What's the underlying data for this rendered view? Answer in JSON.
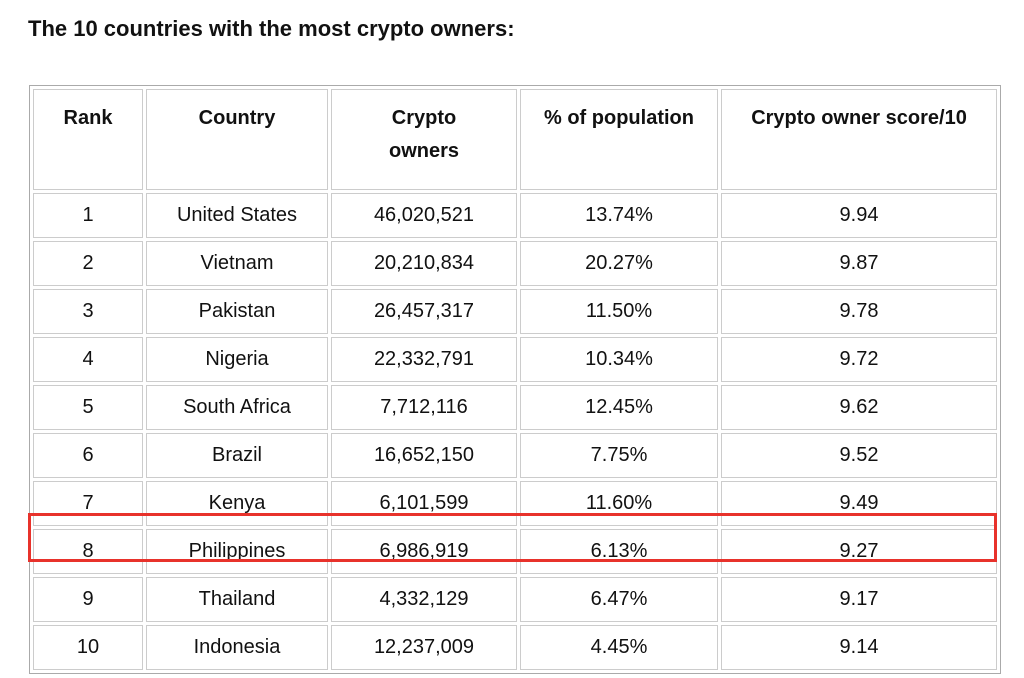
{
  "title": "The 10 countries with the most crypto owners:",
  "table": {
    "headers": [
      "Rank",
      "Country",
      "Crypto owners",
      "% of population",
      "Crypto owner score/10"
    ],
    "rows": [
      [
        "1",
        "United States",
        "46,020,521",
        "13.74%",
        "9.94"
      ],
      [
        "2",
        "Vietnam",
        "20,210,834",
        "20.27%",
        "9.87"
      ],
      [
        "3",
        "Pakistan",
        "26,457,317",
        "11.50%",
        "9.78"
      ],
      [
        "4",
        "Nigeria",
        "22,332,791",
        "10.34%",
        "9.72"
      ],
      [
        "5",
        "South Africa",
        "7,712,116",
        "12.45%",
        "9.62"
      ],
      [
        "6",
        "Brazil",
        "16,652,150",
        "7.75%",
        "9.52"
      ],
      [
        "7",
        "Kenya",
        "6,101,599",
        "11.60%",
        "9.49"
      ],
      [
        "8",
        "Philippines",
        "6,986,919",
        "6.13%",
        "9.27"
      ],
      [
        "9",
        "Thailand",
        "4,332,129",
        "6.47%",
        "9.17"
      ],
      [
        "10",
        "Indonesia",
        "12,237,009",
        "4.45%",
        "9.14"
      ]
    ]
  }
}
